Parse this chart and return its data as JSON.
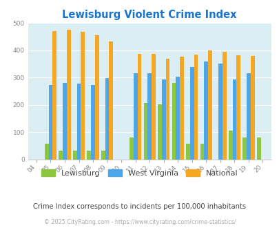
{
  "title": "Lewisburg Violent Crime Index",
  "subtitle": "Crime Index corresponds to incidents per 100,000 inhabitants",
  "copyright": "© 2025 CityRating.com - https://www.cityrating.com/crime-statistics/",
  "years": [
    "04",
    "05",
    "06",
    "07",
    "08",
    "09",
    "10",
    "11",
    "12",
    "13",
    "14",
    "15",
    "16",
    "17",
    "18",
    "19",
    "20"
  ],
  "lewisburg": [
    0,
    58,
    33,
    33,
    33,
    33,
    0,
    80,
    207,
    203,
    280,
    57,
    57,
    0,
    105,
    80,
    80
  ],
  "west_virginia": [
    0,
    272,
    280,
    277,
    273,
    298,
    0,
    315,
    315,
    292,
    304,
    338,
    358,
    351,
    292,
    315,
    0
  ],
  "national": [
    0,
    469,
    474,
    467,
    455,
    432,
    0,
    387,
    387,
    368,
    376,
    383,
    398,
    394,
    381,
    380,
    0
  ],
  "lewisburg_color": "#8dc63f",
  "west_virginia_color": "#4da6e8",
  "national_color": "#f5a623",
  "plot_bg_color": "#daeef3",
  "fig_bg_color": "#ffffff",
  "title_color": "#1874cd",
  "subtitle_color": "#444444",
  "copyright_color": "#aaaaaa",
  "ylim": [
    0,
    500
  ],
  "yticks": [
    0,
    100,
    200,
    300,
    400,
    500
  ],
  "bar_width": 0.28,
  "legend_labels": [
    "Lewisburg",
    "West Virginia",
    "National"
  ]
}
